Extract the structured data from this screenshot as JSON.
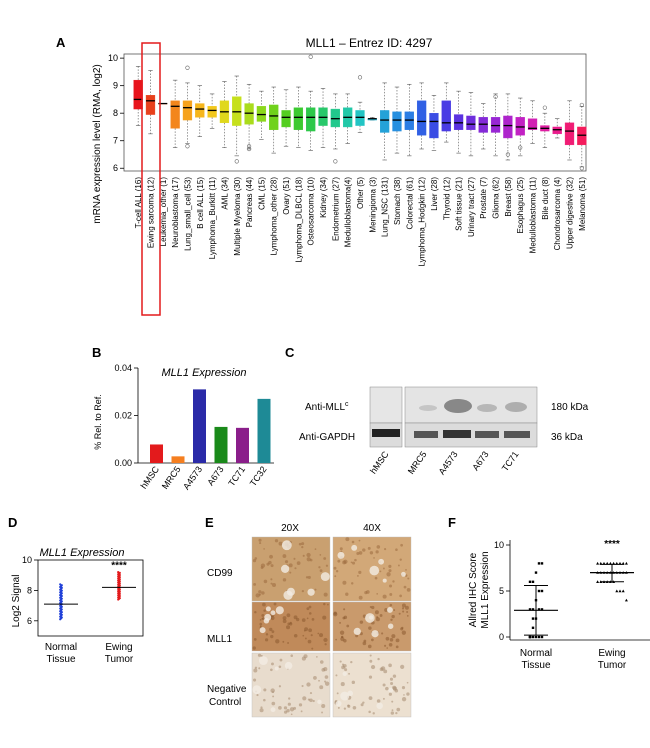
{
  "panels": {
    "a_letter": "A",
    "b_letter": "B",
    "c_letter": "C",
    "d_letter": "D",
    "e_letter": "E",
    "f_letter": "F"
  },
  "chart_data": [
    {
      "panel": "A",
      "type": "box",
      "title": "MLL1 – Entrez ID: 4297",
      "ylabel": "mRNA expression level (RMA, log2)",
      "ylim": [
        6,
        10
      ],
      "yticks": [
        6,
        7,
        8,
        9,
        10
      ],
      "highlighted": "Ewing sarcoma (12)",
      "categories": [
        "T-cell ALL (16)",
        "Ewing sarcoma (12)",
        "Leukemia_other (1)",
        "Neuroblastoma (17)",
        "Lung_small_cell (53)",
        "B cell ALL (15)",
        "Lymphoma_Burkitt (11)",
        "AML (34)",
        "Multiple Myeloma (30)",
        "Pancreas (44)",
        "CML (15)",
        "Lymphoma_other (28)",
        "Ovary (51)",
        "Lymphoma_DLBCL (18)",
        "Osteosarcoma (10)",
        "Kidney (34)",
        "Endometrium (27)",
        "Medulloblastoma(4)",
        "Other (5)",
        "Meningioma (3)",
        "Lung_NSC (131)",
        "Stomach (38)",
        "Colorectal (61)",
        "Lymphoma_Hodgkin (12)",
        "Liver (28)",
        "Thyroid (12)",
        "Soft tissue (21)",
        "Urinary tract (27)",
        "Prostate (7)",
        "Glioma (62)",
        "Breast (58)",
        "Esophagus (25)",
        "Medulloblastoma (11)",
        "Bile duct (8)",
        "Chondrosarcoma (4)",
        "Upper digestive (32)",
        "Melanoma (51)"
      ],
      "colors": [
        "#e8141c",
        "#e8401c",
        "#ef6a1c",
        "#f3861c",
        "#f6a21c",
        "#f6b61c",
        "#f3c81c",
        "#e0d81c",
        "#c6e01c",
        "#aadc1c",
        "#8cd81c",
        "#70d21c",
        "#54ce20",
        "#3cca30",
        "#2ec84a",
        "#28c86a",
        "#22c88c",
        "#22c8a8",
        "#22c4c4",
        "#22b4d0",
        "#24a2d8",
        "#2890e0",
        "#2c7ee4",
        "#3060e4",
        "#3a4ce4",
        "#4a3ce4",
        "#5a32e0",
        "#6e2edc",
        "#842ad8",
        "#9826d4",
        "#ae24cc",
        "#c222c4",
        "#d220b4",
        "#e01ea2",
        "#ea1c8c",
        "#f01c74",
        "#f41c5c"
      ],
      "q1": [
        8.15,
        7.95,
        8.35,
        7.45,
        7.75,
        7.85,
        7.85,
        7.65,
        7.55,
        7.6,
        7.7,
        7.4,
        7.5,
        7.4,
        7.35,
        7.55,
        7.5,
        7.5,
        7.55,
        7.75,
        7.3,
        7.35,
        7.4,
        7.2,
        7.1,
        7.35,
        7.4,
        7.4,
        7.3,
        7.3,
        7.1,
        7.2,
        7.4,
        7.35,
        7.25,
        6.85,
        6.85
      ],
      "median": [
        8.5,
        8.45,
        8.35,
        8.25,
        8.2,
        8.15,
        8.1,
        8.05,
        8.05,
        8.0,
        7.95,
        7.9,
        7.85,
        7.85,
        7.85,
        7.85,
        7.8,
        7.85,
        7.85,
        7.8,
        7.75,
        7.75,
        7.75,
        7.7,
        7.7,
        7.65,
        7.65,
        7.6,
        7.6,
        7.55,
        7.55,
        7.5,
        7.45,
        7.45,
        7.4,
        7.35,
        7.2
      ],
      "q3": [
        9.2,
        8.65,
        8.35,
        8.45,
        8.45,
        8.35,
        8.25,
        8.45,
        8.6,
        8.35,
        8.25,
        8.3,
        8.1,
        8.2,
        8.2,
        8.2,
        8.15,
        8.2,
        8.1,
        7.8,
        8.1,
        8.05,
        8.05,
        8.45,
        8.0,
        8.45,
        7.95,
        7.9,
        7.85,
        7.85,
        7.9,
        7.85,
        7.8,
        7.55,
        7.5,
        7.65,
        7.5
      ],
      "wlow": [
        7.55,
        7.25,
        8.35,
        6.75,
        6.9,
        7.15,
        7.45,
        6.75,
        6.45,
        6.7,
        7.05,
        6.55,
        6.8,
        6.75,
        6.65,
        6.75,
        6.7,
        6.9,
        7.3,
        7.75,
        6.3,
        6.55,
        6.45,
        6.7,
        6.65,
        6.95,
        6.55,
        6.45,
        6.7,
        6.45,
        6.3,
        6.45,
        6.9,
        6.75,
        7.1,
        6.3,
        6.05
      ],
      "whigh": [
        9.7,
        9.55,
        8.35,
        9.2,
        9.1,
        9.0,
        8.7,
        9.15,
        9.35,
        9.05,
        8.8,
        8.95,
        8.85,
        8.95,
        8.8,
        8.9,
        8.7,
        8.7,
        8.4,
        7.85,
        9.1,
        8.95,
        9.05,
        9.1,
        8.65,
        9.1,
        8.8,
        8.75,
        8.35,
        8.7,
        8.7,
        8.55,
        8.45,
        8.0,
        7.8,
        8.45,
        8.25
      ],
      "outliers": [
        {
          "cat": 4,
          "y": 9.65
        },
        {
          "cat": 4,
          "y": 6.8
        },
        {
          "cat": 9,
          "y": 6.7
        },
        {
          "cat": 9,
          "y": 6.8
        },
        {
          "cat": 14,
          "y": 10.05
        },
        {
          "cat": 16,
          "y": 6.25
        },
        {
          "cat": 18,
          "y": 9.3
        },
        {
          "cat": 8,
          "y": 6.25
        },
        {
          "cat": 29,
          "y": 8.6
        },
        {
          "cat": 30,
          "y": 6.5
        },
        {
          "cat": 31,
          "y": 6.75
        },
        {
          "cat": 36,
          "y": 8.3
        },
        {
          "cat": 36,
          "y": 6.0
        },
        {
          "cat": 33,
          "y": 8.2
        }
      ]
    },
    {
      "panel": "B",
      "type": "bar",
      "title": "MLL1 Expression",
      "ylabel": "% Rel. to Ref.",
      "ylim": [
        0,
        0.04
      ],
      "yticks": [
        "0.00",
        "0.02",
        "0.04"
      ],
      "categories": [
        "hMSC",
        "MRC5",
        "A4573",
        "A673",
        "TC71",
        "TC32"
      ],
      "values": [
        0.0078,
        0.0028,
        0.031,
        0.0152,
        0.0148,
        0.027
      ],
      "colors": [
        "#e31a1c",
        "#f57f20",
        "#2a2aa8",
        "#1a8a1a",
        "#8a1e8a",
        "#1e8a96"
      ]
    },
    {
      "panel": "D",
      "type": "scatter",
      "title": "MLL1  Expression",
      "ylabel": "Log2 Signal",
      "ylim": [
        5,
        10
      ],
      "yticks": [
        "6",
        "8",
        "10"
      ],
      "groups": [
        {
          "name": "Normal\nTissue",
          "label1": "Normal",
          "label2": "Tissue",
          "mean": 7.1,
          "min": 6.1,
          "max": 8.4,
          "color": "#1f3fd8"
        },
        {
          "name": "Ewing\nTumor",
          "label1": "Ewing",
          "label2": "Tumor",
          "mean": 8.2,
          "min": 7.4,
          "max": 9.2,
          "color": "#e31a1c"
        }
      ],
      "significance": "****"
    },
    {
      "panel": "F",
      "type": "scatter",
      "ylabel": "Allred IHC Score MLL1 Expression",
      "ylabel1": "Allred IHC Score",
      "ylabel2": "MLL1 Expression",
      "ylim": [
        0,
        10
      ],
      "yticks": [
        "0",
        "5",
        "10"
      ],
      "groups": [
        {
          "label1": "Normal",
          "label2": "Tissue",
          "mean": 2.9,
          "sd_low": 0.2,
          "sd_high": 5.6
        },
        {
          "label1": "Ewing",
          "label2": "Tumor",
          "mean": 7.0,
          "sd_low": 6.0,
          "sd_high": 7.9
        }
      ],
      "significance": "****"
    }
  ],
  "western_blot": {
    "row1_label": "Anti-MLL",
    "row1_sup": "c",
    "row2_label": "Anti-GAPDH",
    "size1": "180 kDa",
    "size2": "36 kDa",
    "lanes": [
      "hMSC",
      "MRC5",
      "A4573",
      "A673",
      "TC71"
    ]
  },
  "ihc": {
    "col1": "20X",
    "col2": "40X",
    "rows": [
      "CD99",
      "MLL1",
      "Negative",
      "Control"
    ]
  }
}
